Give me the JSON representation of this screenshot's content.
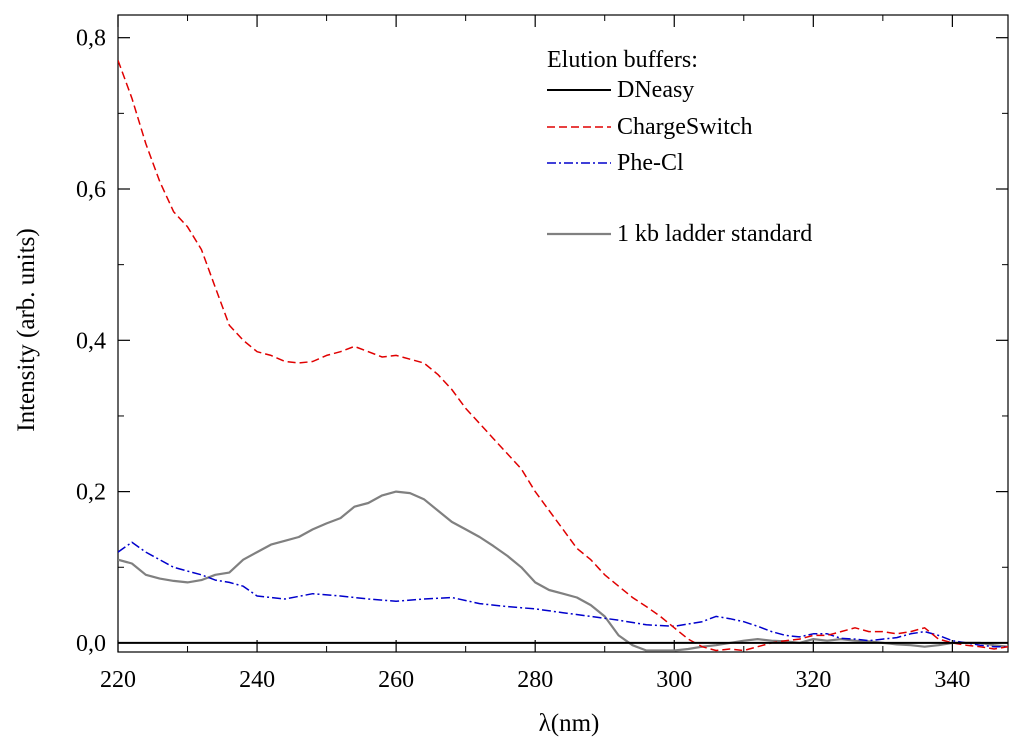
{
  "chart_data": {
    "type": "line",
    "xlabel": "λ(nm)",
    "ylabel": "Intensity (arb. units)",
    "xlim": [
      220,
      348
    ],
    "ylim": [
      -0.012,
      0.83
    ],
    "xticks": [
      220,
      240,
      260,
      280,
      300,
      320,
      340
    ],
    "xtick_labels": [
      "220",
      "240",
      "260",
      "280",
      "300",
      "320",
      "340"
    ],
    "yticks": [
      0.0,
      0.2,
      0.4,
      0.6,
      0.8
    ],
    "ytick_labels": [
      "0,0",
      "0,2",
      "0,4",
      "0,6",
      "0,8"
    ],
    "grid": false,
    "legend": {
      "title": "Elution buffers:",
      "placement": "top-right"
    },
    "series": [
      {
        "name": "DNeasy",
        "color": "#000000",
        "style": "solid",
        "x": [
          220,
          348
        ],
        "y": [
          0.0,
          0.0
        ]
      },
      {
        "name": "ChargeSwitch",
        "color": "#e00000",
        "style": "dashed",
        "x": [
          220,
          222,
          224,
          226,
          228,
          230,
          232,
          234,
          236,
          238,
          240,
          242,
          244,
          246,
          248,
          250,
          252,
          254,
          256,
          258,
          260,
          262,
          264,
          266,
          268,
          270,
          272,
          274,
          276,
          278,
          280,
          282,
          284,
          286,
          288,
          290,
          292,
          294,
          296,
          298,
          300,
          302,
          304,
          306,
          308,
          310,
          312,
          314,
          316,
          318,
          320,
          322,
          324,
          326,
          328,
          330,
          332,
          334,
          336,
          338,
          340,
          342,
          344,
          346,
          348
        ],
        "y": [
          0.77,
          0.72,
          0.66,
          0.61,
          0.57,
          0.55,
          0.52,
          0.47,
          0.42,
          0.4,
          0.385,
          0.38,
          0.372,
          0.37,
          0.372,
          0.38,
          0.385,
          0.392,
          0.385,
          0.378,
          0.38,
          0.375,
          0.37,
          0.355,
          0.335,
          0.31,
          0.29,
          0.27,
          0.25,
          0.23,
          0.2,
          0.175,
          0.15,
          0.125,
          0.11,
          0.09,
          0.075,
          0.06,
          0.048,
          0.035,
          0.02,
          0.005,
          -0.005,
          -0.01,
          -0.008,
          -0.01,
          -0.005,
          0.0,
          0.003,
          0.005,
          0.01,
          0.01,
          0.015,
          0.02,
          0.015,
          0.015,
          0.012,
          0.015,
          0.02,
          0.005,
          0.0,
          -0.003,
          -0.005,
          -0.008,
          -0.005
        ]
      },
      {
        "name": "Phe-Cl",
        "color": "#0000cc",
        "style": "dashdot",
        "x": [
          220,
          222,
          224,
          226,
          228,
          230,
          232,
          234,
          236,
          238,
          240,
          244,
          248,
          252,
          256,
          260,
          264,
          268,
          272,
          276,
          280,
          284,
          288,
          292,
          296,
          300,
          302,
          304,
          306,
          308,
          310,
          312,
          314,
          316,
          318,
          320,
          322,
          324,
          326,
          328,
          330,
          332,
          334,
          336,
          338,
          340,
          342,
          344,
          346,
          348
        ],
        "y": [
          0.12,
          0.133,
          0.12,
          0.11,
          0.1,
          0.095,
          0.09,
          0.083,
          0.08,
          0.075,
          0.062,
          0.058,
          0.065,
          0.062,
          0.058,
          0.055,
          0.058,
          0.06,
          0.052,
          0.048,
          0.045,
          0.04,
          0.035,
          0.03,
          0.024,
          0.022,
          0.025,
          0.028,
          0.035,
          0.032,
          0.028,
          0.022,
          0.015,
          0.01,
          0.008,
          0.012,
          0.012,
          0.006,
          0.005,
          0.003,
          0.005,
          0.007,
          0.012,
          0.015,
          0.01,
          0.003,
          0.0,
          -0.003,
          -0.005,
          -0.005
        ]
      },
      {
        "name": "1 kb ladder standard",
        "color": "#808080",
        "style": "solid",
        "x": [
          220,
          222,
          224,
          226,
          228,
          230,
          232,
          234,
          236,
          238,
          240,
          242,
          244,
          246,
          248,
          250,
          252,
          254,
          256,
          258,
          260,
          262,
          264,
          266,
          268,
          270,
          272,
          274,
          276,
          278,
          280,
          282,
          284,
          286,
          288,
          290,
          292,
          294,
          296,
          298,
          300,
          302,
          304,
          306,
          308,
          310,
          312,
          314,
          316,
          318,
          320,
          322,
          324,
          326,
          328,
          330,
          332,
          334,
          336,
          338,
          340,
          342,
          344,
          346,
          348
        ],
        "y": [
          0.11,
          0.105,
          0.09,
          0.085,
          0.082,
          0.08,
          0.083,
          0.09,
          0.093,
          0.11,
          0.12,
          0.13,
          0.135,
          0.14,
          0.15,
          0.158,
          0.165,
          0.18,
          0.185,
          0.195,
          0.2,
          0.198,
          0.19,
          0.175,
          0.16,
          0.15,
          0.14,
          0.128,
          0.115,
          0.1,
          0.08,
          0.07,
          0.065,
          0.06,
          0.05,
          0.035,
          0.01,
          -0.003,
          -0.01,
          -0.01,
          -0.01,
          -0.008,
          -0.005,
          -0.003,
          0.0,
          0.003,
          0.005,
          0.003,
          0.002,
          0.0,
          0.005,
          0.003,
          0.005,
          0.003,
          0.002,
          0.0,
          -0.002,
          -0.003,
          -0.005,
          -0.003,
          0.0,
          0.0,
          0.0,
          -0.003,
          -0.005
        ]
      }
    ]
  }
}
